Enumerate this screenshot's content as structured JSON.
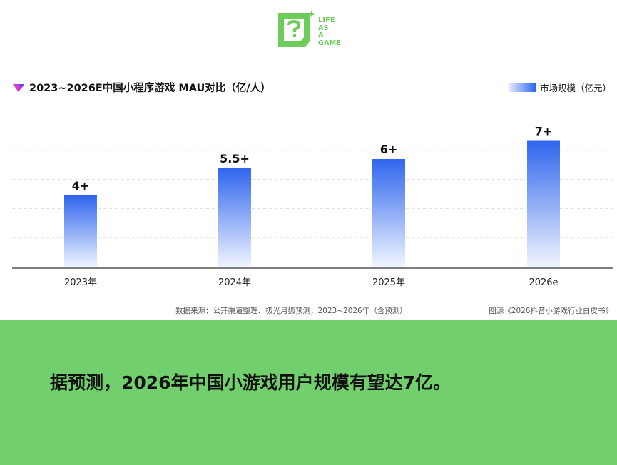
{
  "logo": {
    "lines": [
      "LIFE",
      "AS",
      "A",
      "GAME"
    ],
    "color": "#6ecd5a"
  },
  "chart_data": {
    "type": "bar",
    "title": "2023~2026E中国小程序游戏 MAU对比（亿/人）",
    "categories": [
      "2023年",
      "2024年",
      "2025年",
      "2026e"
    ],
    "series": [
      {
        "name": "市场规模（亿元）",
        "values": [
          4,
          5.5,
          6,
          7
        ]
      }
    ],
    "data_labels": [
      "4+",
      "5.5+",
      "6+",
      "7+"
    ],
    "ylim": [
      0,
      8
    ],
    "xlabel": "",
    "ylabel": "",
    "grid": true,
    "legend_position": "top-right",
    "colors": {
      "bar_top": "#2f66ee",
      "bar_bottom": "#ffffff",
      "title_icon": "#d63cc8"
    }
  },
  "source_note": "数据来源：公开渠道整理、极光月狐预测，2023~2026年（含预测）",
  "image_source": "图源《2026抖音小游戏行业白皮书》",
  "banner": {
    "text": "据预测，2026年中国小游戏用户规模有望达7亿。",
    "color": "#72cf6d"
  }
}
